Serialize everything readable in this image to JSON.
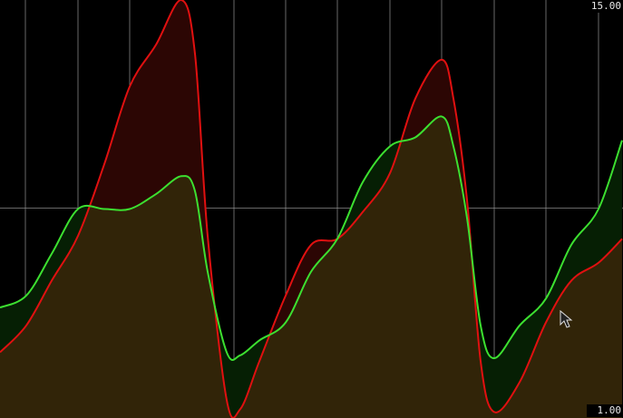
{
  "chart_data": {
    "type": "line",
    "x": [
      0,
      29,
      57,
      86,
      115,
      143,
      172,
      200,
      215,
      229,
      250,
      265,
      286,
      315,
      343,
      372,
      400,
      430,
      458,
      487,
      500,
      515,
      530,
      545,
      573,
      602,
      630,
      660,
      686
    ],
    "xlim": [
      0,
      686
    ],
    "ylim": [
      1,
      15
    ],
    "yticks": [
      {
        "value": 15,
        "label": "15.00"
      },
      {
        "value": 1,
        "label": "1.00"
      }
    ],
    "series": [
      {
        "name": "red",
        "color": "#e01010",
        "values": [
          3.2,
          4.1,
          5.6,
          7.1,
          9.5,
          12.1,
          13.5,
          15.0,
          13.2,
          7.1,
          1.6,
          1.3,
          2.9,
          5.1,
          6.8,
          7.0,
          7.9,
          9.2,
          11.7,
          13.0,
          11.7,
          8.3,
          2.9,
          1.2,
          2.2,
          4.2,
          5.6,
          6.2,
          7.0
        ]
      },
      {
        "name": "green",
        "color": "#3ce030",
        "values": [
          4.7,
          5.1,
          6.5,
          8.0,
          8.0,
          8.0,
          8.5,
          9.1,
          8.6,
          5.9,
          3.2,
          3.1,
          3.6,
          4.2,
          5.9,
          7.0,
          8.9,
          10.1,
          10.4,
          11.1,
          10.1,
          7.7,
          4.1,
          3.0,
          4.1,
          5.0,
          6.8,
          8.0,
          10.3
        ]
      }
    ]
  }
}
